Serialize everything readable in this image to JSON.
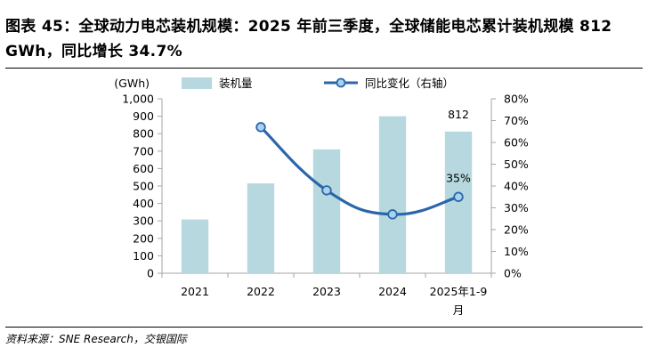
{
  "title": "图表 45：全球动力电芯装机规模：2025 年前三季度，全球储能电芯累计装机规模 812 GWh，同比增长 34.7%",
  "source": "资料来源：SNE Research，交银国际",
  "colors": {
    "bar": "#b7d8de",
    "line": "#2b67a8",
    "marker_fill": "#a8d3f0",
    "axis": "#a6a6a6"
  },
  "chart_data": {
    "type": "bar+line",
    "categories": [
      "2021",
      "2022",
      "2023",
      "2024",
      "2025年1-9月"
    ],
    "left_axis": {
      "unit_label": "(GWh)",
      "ylim": [
        0,
        1000
      ],
      "ticks": [
        "0",
        "100",
        "200",
        "300",
        "400",
        "500",
        "600",
        "700",
        "800",
        "900",
        "1,000"
      ]
    },
    "right_axis": {
      "ylim": [
        0,
        80
      ],
      "ticks": [
        "0%",
        "10%",
        "20%",
        "30%",
        "40%",
        "50%",
        "60%",
        "70%",
        "80%"
      ]
    },
    "series": [
      {
        "name": "装机量",
        "type": "bar",
        "axis": "left",
        "values": [
          308,
          515,
          710,
          900,
          812
        ]
      },
      {
        "name": "同比变化（右轴）",
        "type": "line",
        "axis": "right",
        "values": [
          null,
          67,
          38,
          27,
          35
        ]
      }
    ],
    "data_labels": [
      {
        "series": 0,
        "index": 4,
        "text": "812"
      },
      {
        "series": 1,
        "index": 4,
        "text": "35%"
      }
    ],
    "legend": {
      "placement": "top",
      "items": [
        "装机量",
        "同比变化（右轴）"
      ]
    },
    "grid": false
  }
}
